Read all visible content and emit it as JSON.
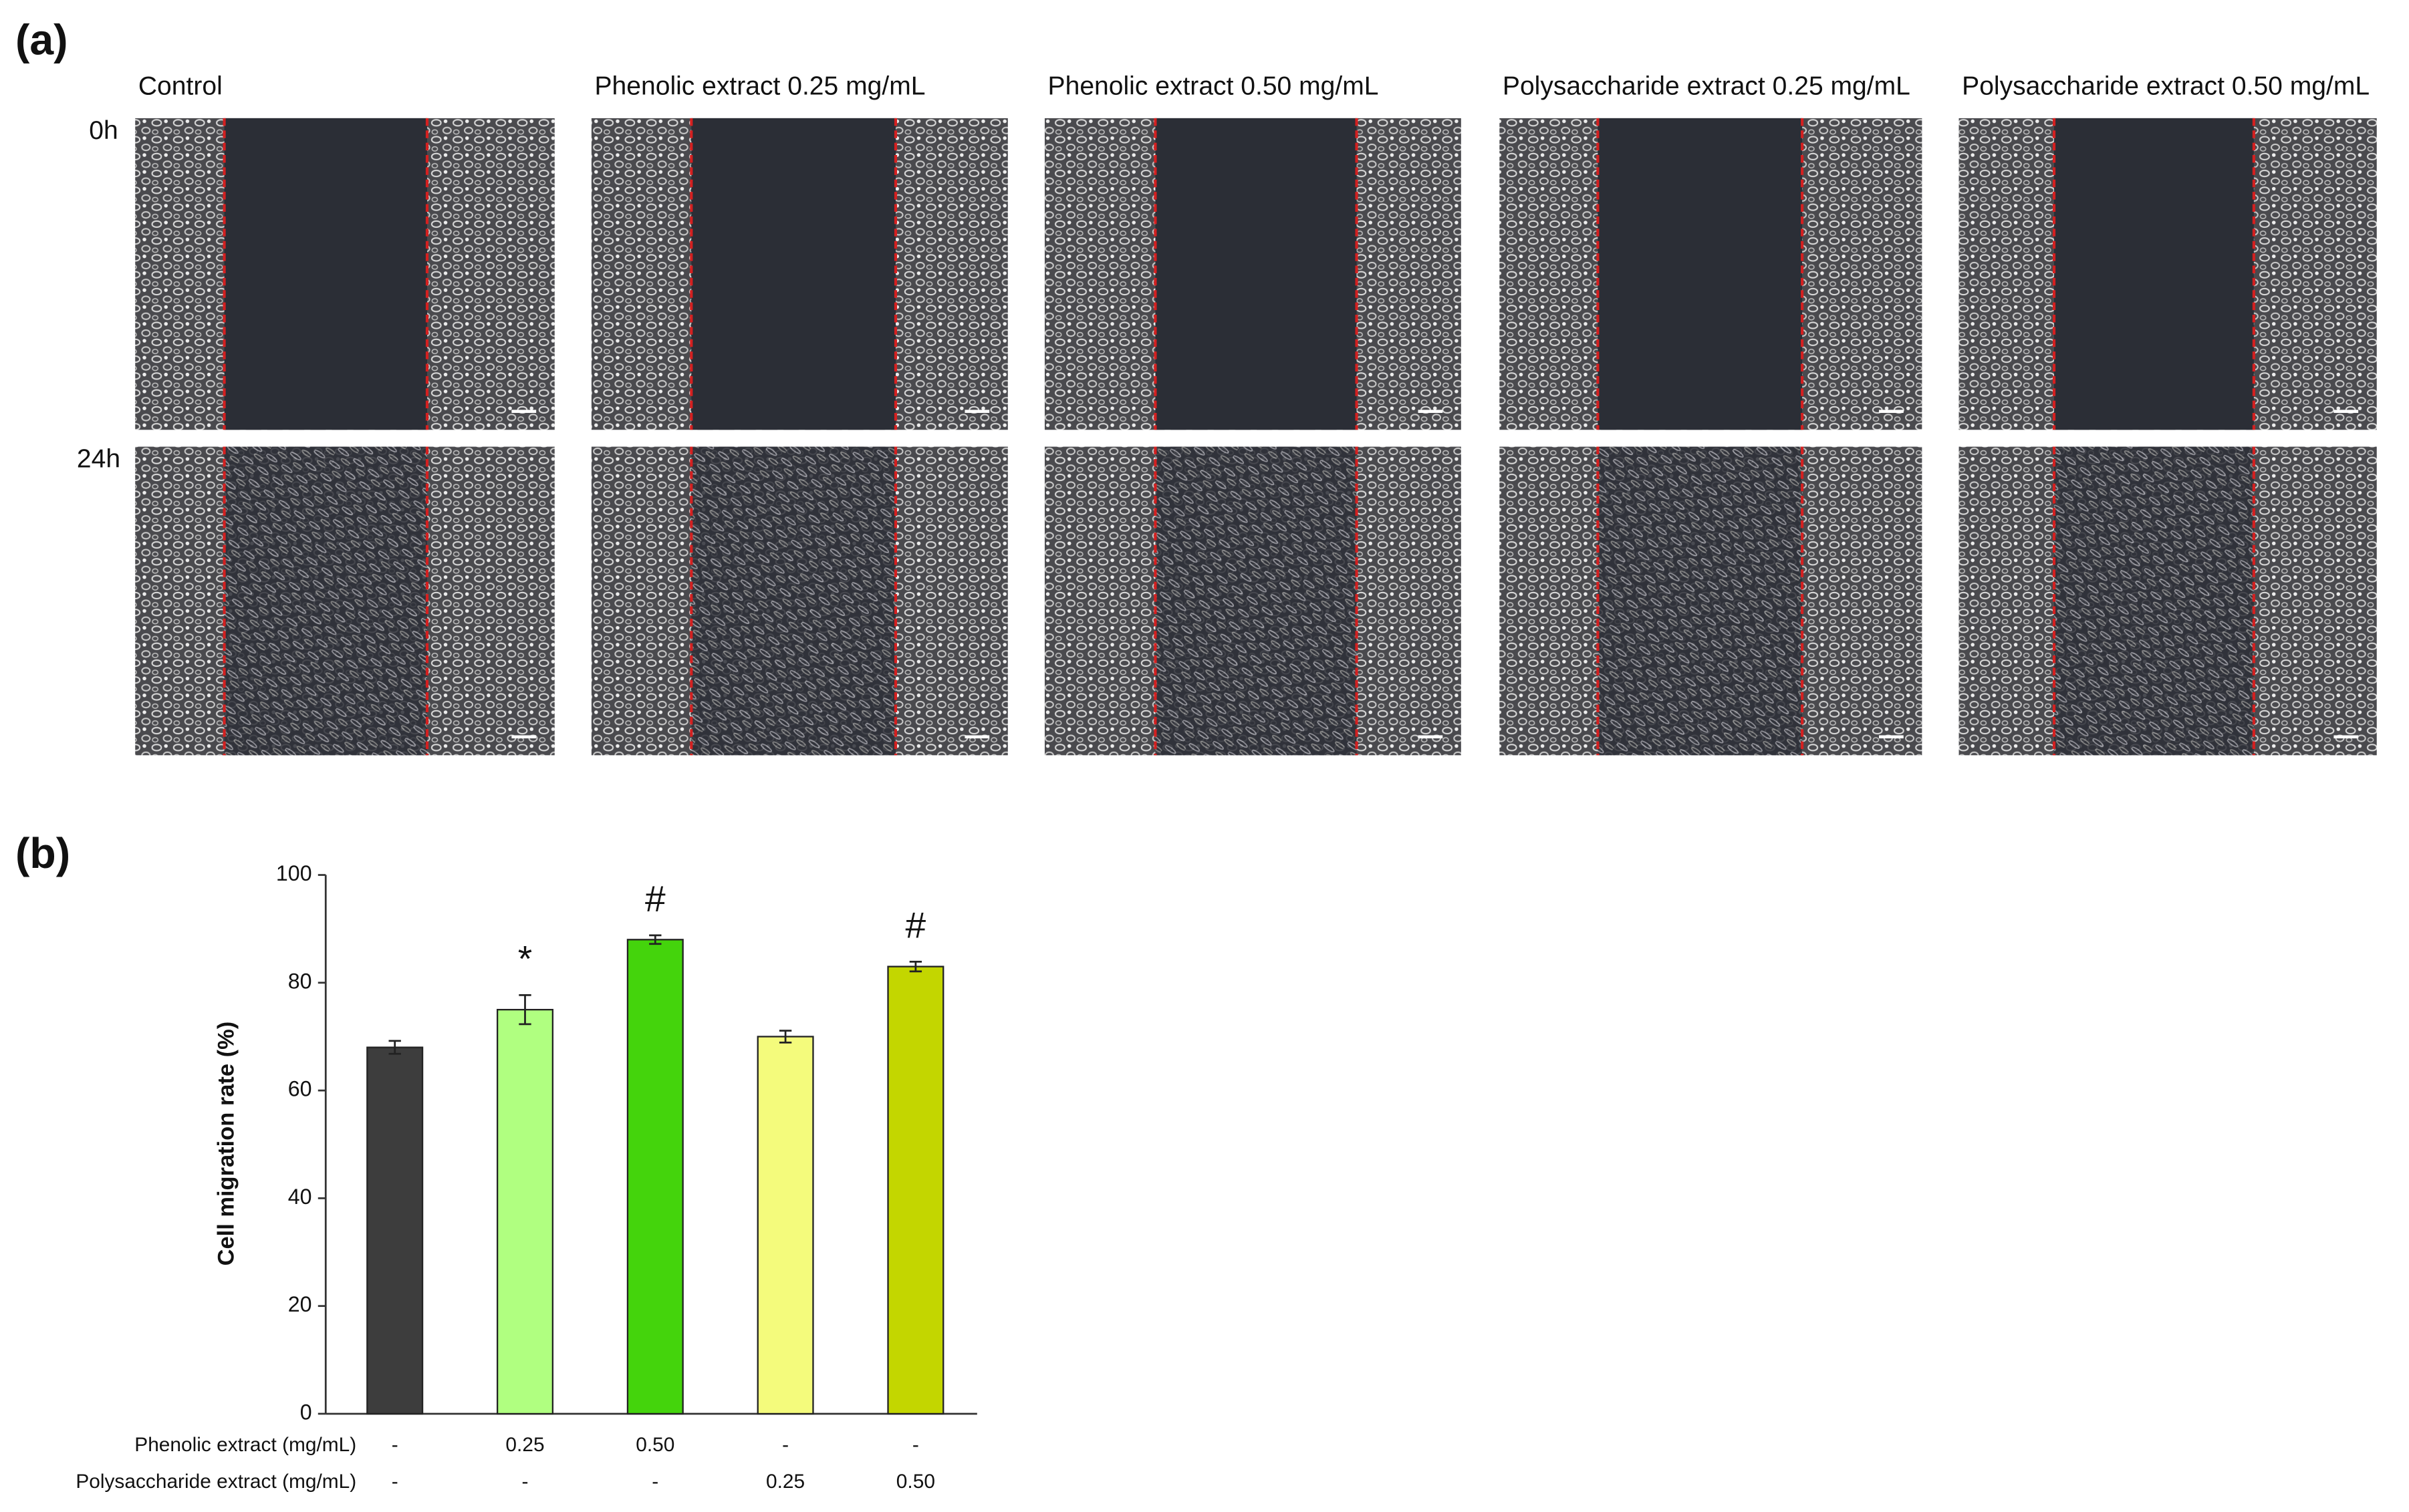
{
  "panel_a": {
    "label": "(a)",
    "columns": [
      "Control",
      "Phenolic extract 0.25 mg/mL",
      "Phenolic extract 0.50 mg/mL",
      "Polysaccharide extract 0.25 mg/mL",
      "Polysaccharide extract 0.50 mg/mL"
    ],
    "rows": [
      "0h",
      "24h"
    ]
  },
  "chart_data": {
    "type": "bar",
    "panel_label": "(b)",
    "y_label": "Cell migration rate (%)",
    "category_rows": [
      {
        "name": "Phenolic extract (mg/mL)",
        "labels": [
          "-",
          "0.25",
          "0.50",
          "-",
          "-"
        ]
      },
      {
        "name": "Polysaccharide extract (mg/mL)",
        "labels": [
          "-",
          "-",
          "-",
          "0.25",
          "0.50"
        ]
      }
    ],
    "values": [
      68,
      75,
      88,
      70,
      83
    ],
    "errors": [
      1.2,
      2.7,
      0.8,
      1.1,
      0.9
    ],
    "colors": [
      "#3d3d3d",
      "#b0ff80",
      "#44d40c",
      "#f4fb7c",
      "#c3d600"
    ],
    "annotations": [
      {
        "index": 1,
        "text": "*"
      },
      {
        "index": 2,
        "text": "#"
      },
      {
        "index": 4,
        "text": "#"
      }
    ],
    "ylim": [
      0,
      100
    ],
    "yticks": [
      0,
      20,
      40,
      60,
      80,
      100
    ]
  }
}
